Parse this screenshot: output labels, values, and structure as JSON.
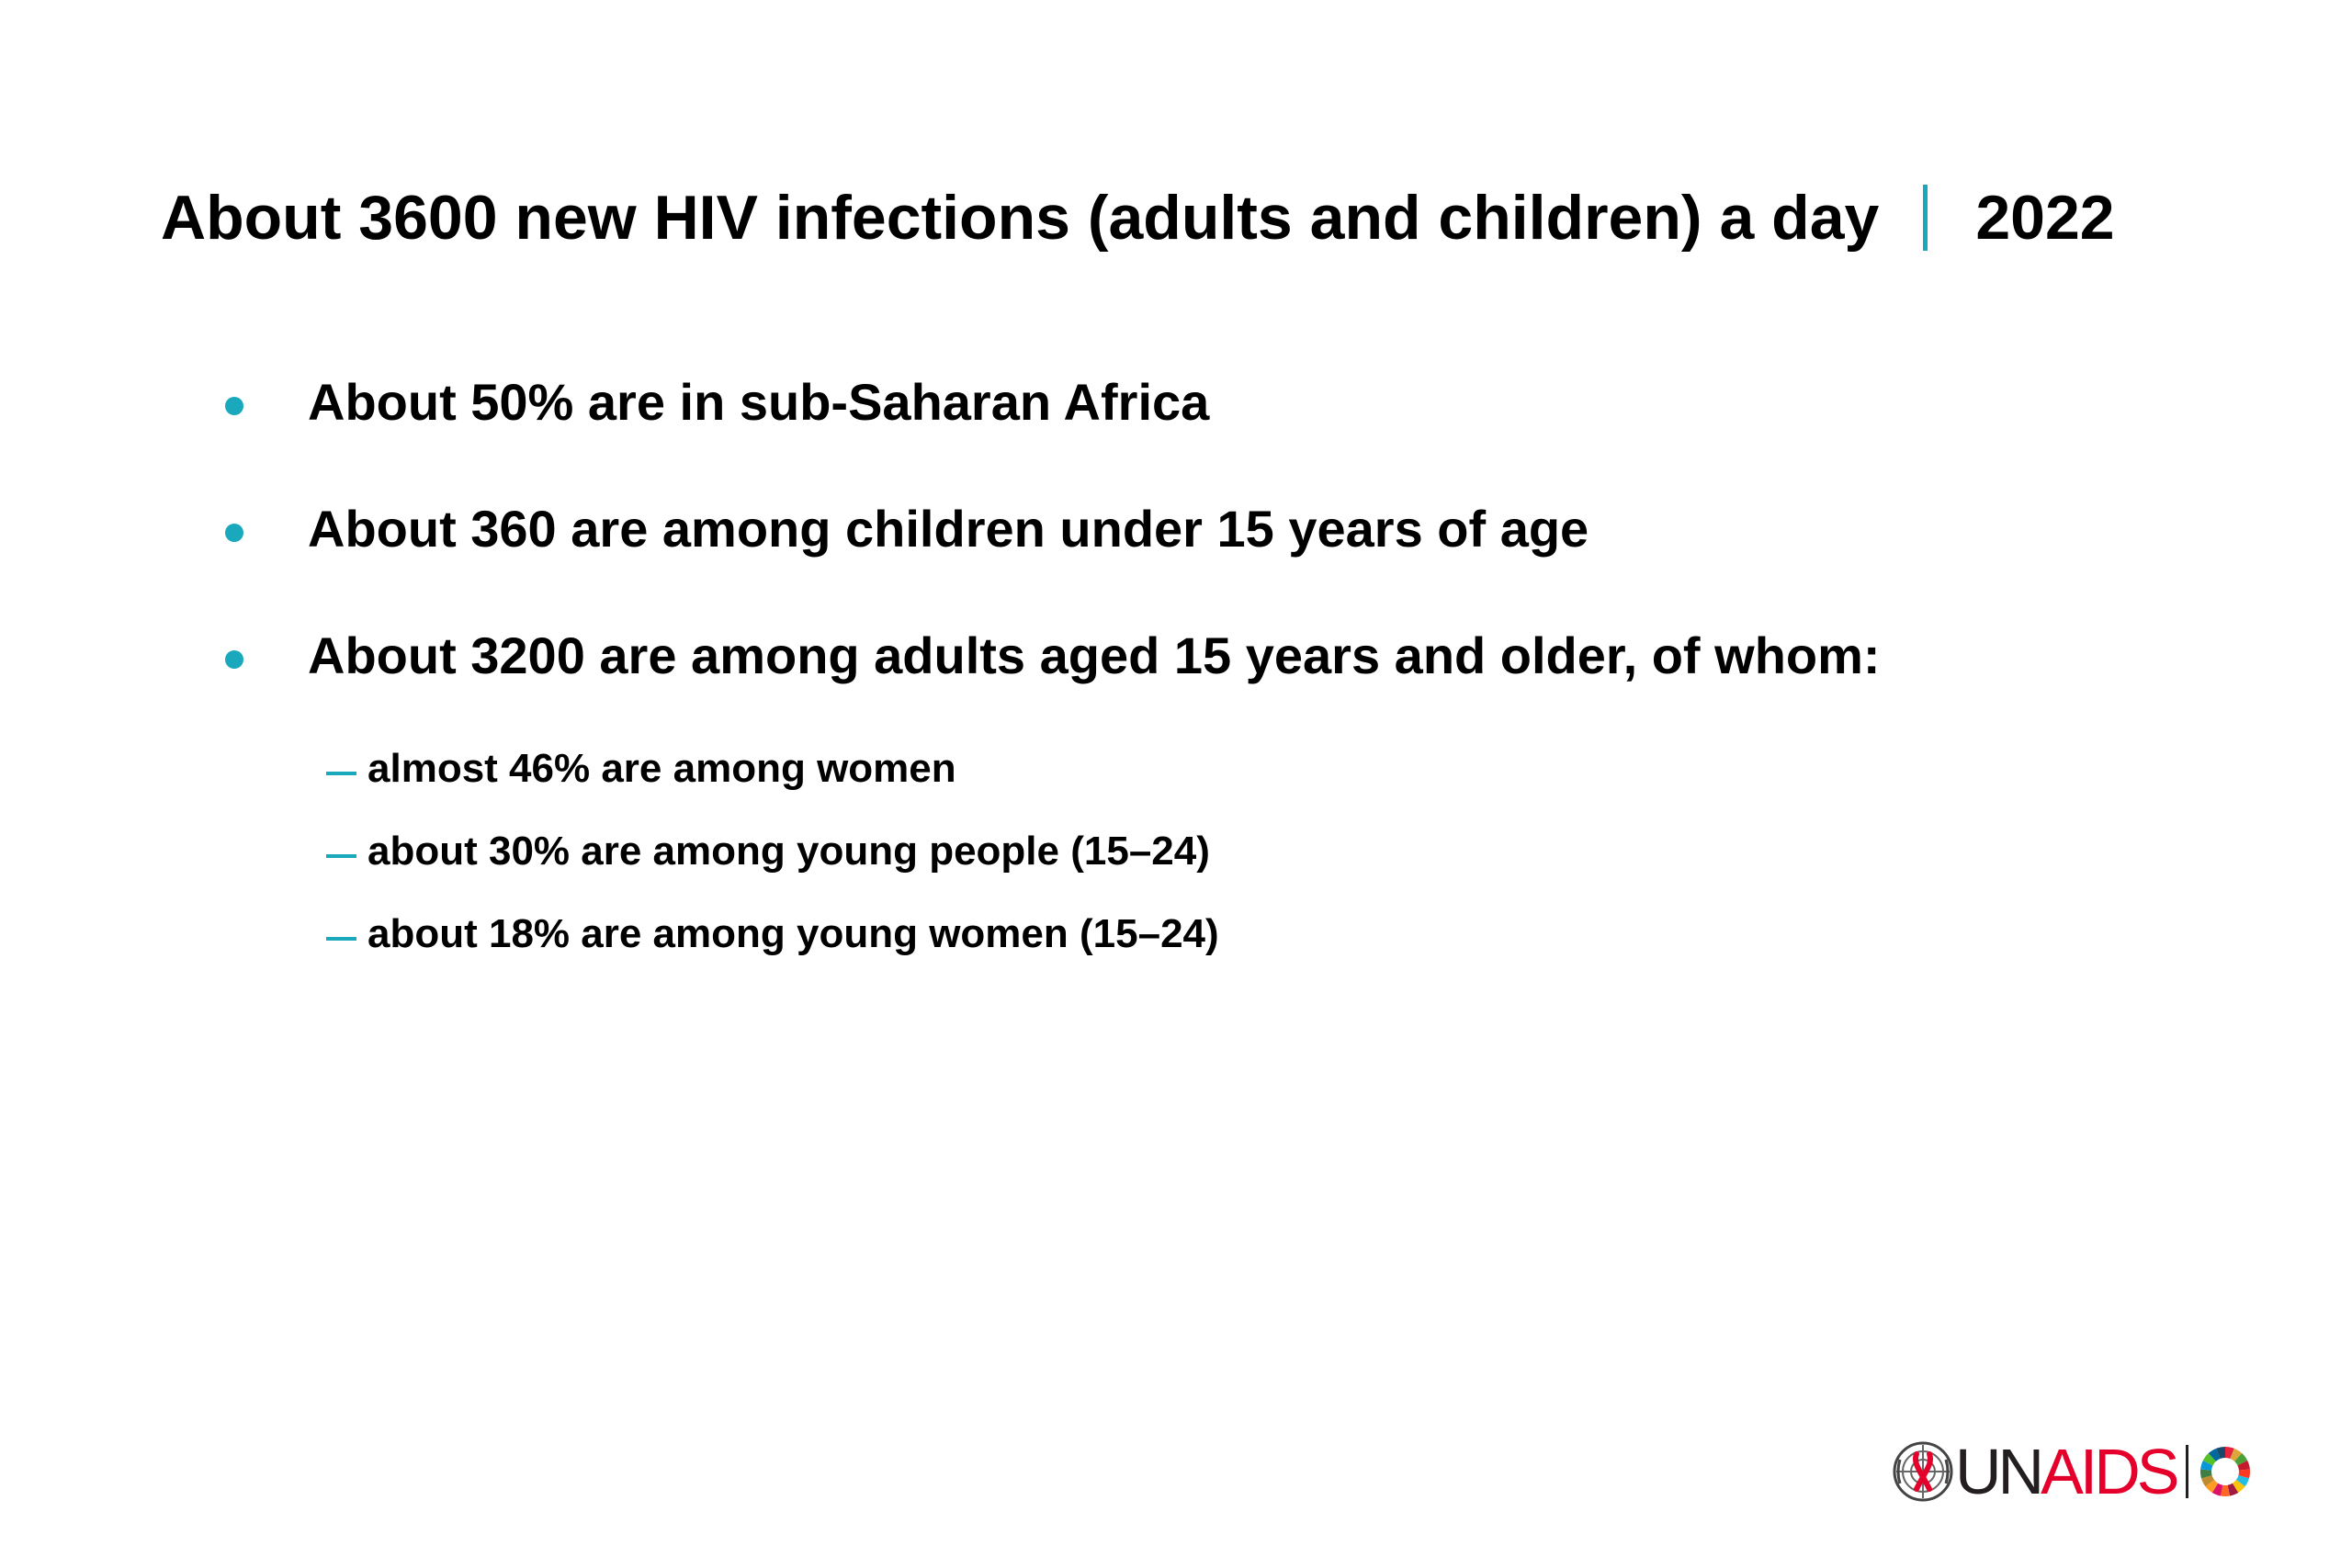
{
  "slide": {
    "title": "About 3600 new HIV infections (adults and children) a day",
    "year": "2022",
    "accent_color": "#1aa9bc"
  },
  "bullets": [
    {
      "text": "About 50% are in sub-Saharan Africa"
    },
    {
      "text": "About 360 are among children under 15 years of age"
    },
    {
      "text": "About 3200 are among adults aged 15 years and older, of whom:"
    }
  ],
  "subbullets": [
    {
      "text": "almost 46% are among women"
    },
    {
      "text": "about 30% are among young people (15–24)"
    },
    {
      "text": "about 18% are among young women (15–24)"
    }
  ],
  "logo": {
    "text_part1": "UN",
    "text_part2": "AIDS",
    "text_color_dark": "#231f20",
    "text_color_red": "#e4002b",
    "emblem_icon": "un-emblem-red-ribbon-icon",
    "sdg_icon": "sdg-color-wheel-icon"
  }
}
